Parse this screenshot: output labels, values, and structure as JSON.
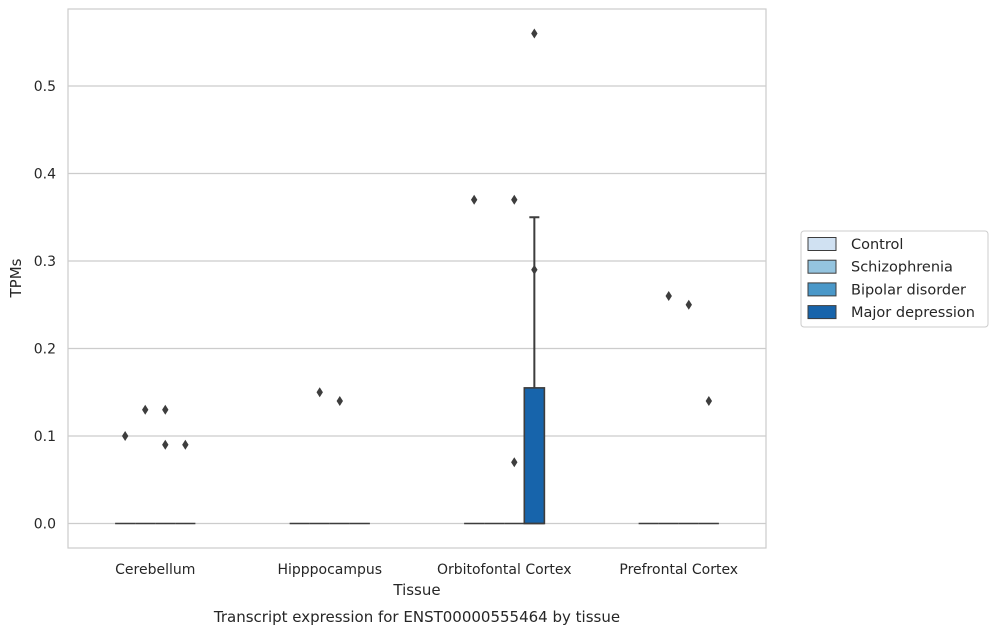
{
  "chart_data": {
    "type": "box",
    "xlabel": "Tissue",
    "ylabel": "TPMs",
    "caption": "Transcript expression for ENST00000555464 by tissue",
    "ylim": [
      -0.028,
      0.588
    ],
    "yticks": [
      "0.0",
      "0.1",
      "0.2",
      "0.3",
      "0.4",
      "0.5"
    ],
    "yticks_values": [
      0.0,
      0.1,
      0.2,
      0.3,
      0.4,
      0.5
    ],
    "grid": "horizontal",
    "legend_position": "right",
    "categories": [
      "Cerebellum",
      "Hipppocampus",
      "Orbitofontal Cortex",
      "Prefrontal Cortex"
    ],
    "series": [
      {
        "name": "Control",
        "color": "#d0e1f2",
        "boxes": [
          {
            "category": "Cerebellum",
            "q1": 0,
            "median": 0,
            "q3": 0,
            "whisker_low": 0,
            "whisker_high": 0,
            "outliers": [
              0.1
            ]
          },
          {
            "category": "Hipppocampus",
            "q1": 0,
            "median": 0,
            "q3": 0,
            "whisker_low": 0,
            "whisker_high": 0,
            "outliers": []
          },
          {
            "category": "Orbitofontal Cortex",
            "q1": 0,
            "median": 0,
            "q3": 0,
            "whisker_low": 0,
            "whisker_high": 0,
            "outliers": [
              0.37
            ]
          },
          {
            "category": "Prefrontal Cortex",
            "q1": 0,
            "median": 0,
            "q3": 0,
            "whisker_low": 0,
            "whisker_high": 0,
            "outliers": []
          }
        ]
      },
      {
        "name": "Schizophrenia",
        "color": "#94c4df",
        "boxes": [
          {
            "category": "Cerebellum",
            "q1": 0,
            "median": 0,
            "q3": 0,
            "whisker_low": 0,
            "whisker_high": 0,
            "outliers": [
              0.13
            ]
          },
          {
            "category": "Hipppocampus",
            "q1": 0,
            "median": 0,
            "q3": 0,
            "whisker_low": 0,
            "whisker_high": 0,
            "outliers": [
              0.15
            ]
          },
          {
            "category": "Orbitofontal Cortex",
            "q1": 0,
            "median": 0,
            "q3": 0,
            "whisker_low": 0,
            "whisker_high": 0,
            "outliers": []
          },
          {
            "category": "Prefrontal Cortex",
            "q1": 0,
            "median": 0,
            "q3": 0,
            "whisker_low": 0,
            "whisker_high": 0,
            "outliers": [
              0.26
            ]
          }
        ]
      },
      {
        "name": "Bipolar disorder",
        "color": "#4a98c9",
        "boxes": [
          {
            "category": "Cerebellum",
            "q1": 0,
            "median": 0,
            "q3": 0,
            "whisker_low": 0,
            "whisker_high": 0,
            "outliers": [
              0.13,
              0.09
            ]
          },
          {
            "category": "Hipppocampus",
            "q1": 0,
            "median": 0,
            "q3": 0,
            "whisker_low": 0,
            "whisker_high": 0,
            "outliers": [
              0.14
            ]
          },
          {
            "category": "Orbitofontal Cortex",
            "q1": 0,
            "median": 0,
            "q3": 0,
            "whisker_low": 0,
            "whisker_high": 0,
            "outliers": [
              0.37,
              0.07
            ]
          },
          {
            "category": "Prefrontal Cortex",
            "q1": 0,
            "median": 0,
            "q3": 0,
            "whisker_low": 0,
            "whisker_high": 0,
            "outliers": [
              0.25
            ]
          }
        ]
      },
      {
        "name": "Major depression",
        "color": "#1764ab",
        "boxes": [
          {
            "category": "Cerebellum",
            "q1": 0,
            "median": 0,
            "q3": 0,
            "whisker_low": 0,
            "whisker_high": 0,
            "outliers": [
              0.09
            ]
          },
          {
            "category": "Hipppocampus",
            "q1": 0,
            "median": 0,
            "q3": 0,
            "whisker_low": 0,
            "whisker_high": 0,
            "outliers": []
          },
          {
            "category": "Orbitofontal Cortex",
            "q1": 0,
            "median": 0,
            "q3": 0.155,
            "whisker_low": 0,
            "whisker_high": 0.35,
            "outliers": [
              0.29,
              0.56
            ]
          },
          {
            "category": "Prefrontal Cortex",
            "q1": 0,
            "median": 0,
            "q3": 0,
            "whisker_low": 0,
            "whisker_high": 0,
            "outliers": [
              0.14
            ]
          }
        ]
      }
    ]
  }
}
